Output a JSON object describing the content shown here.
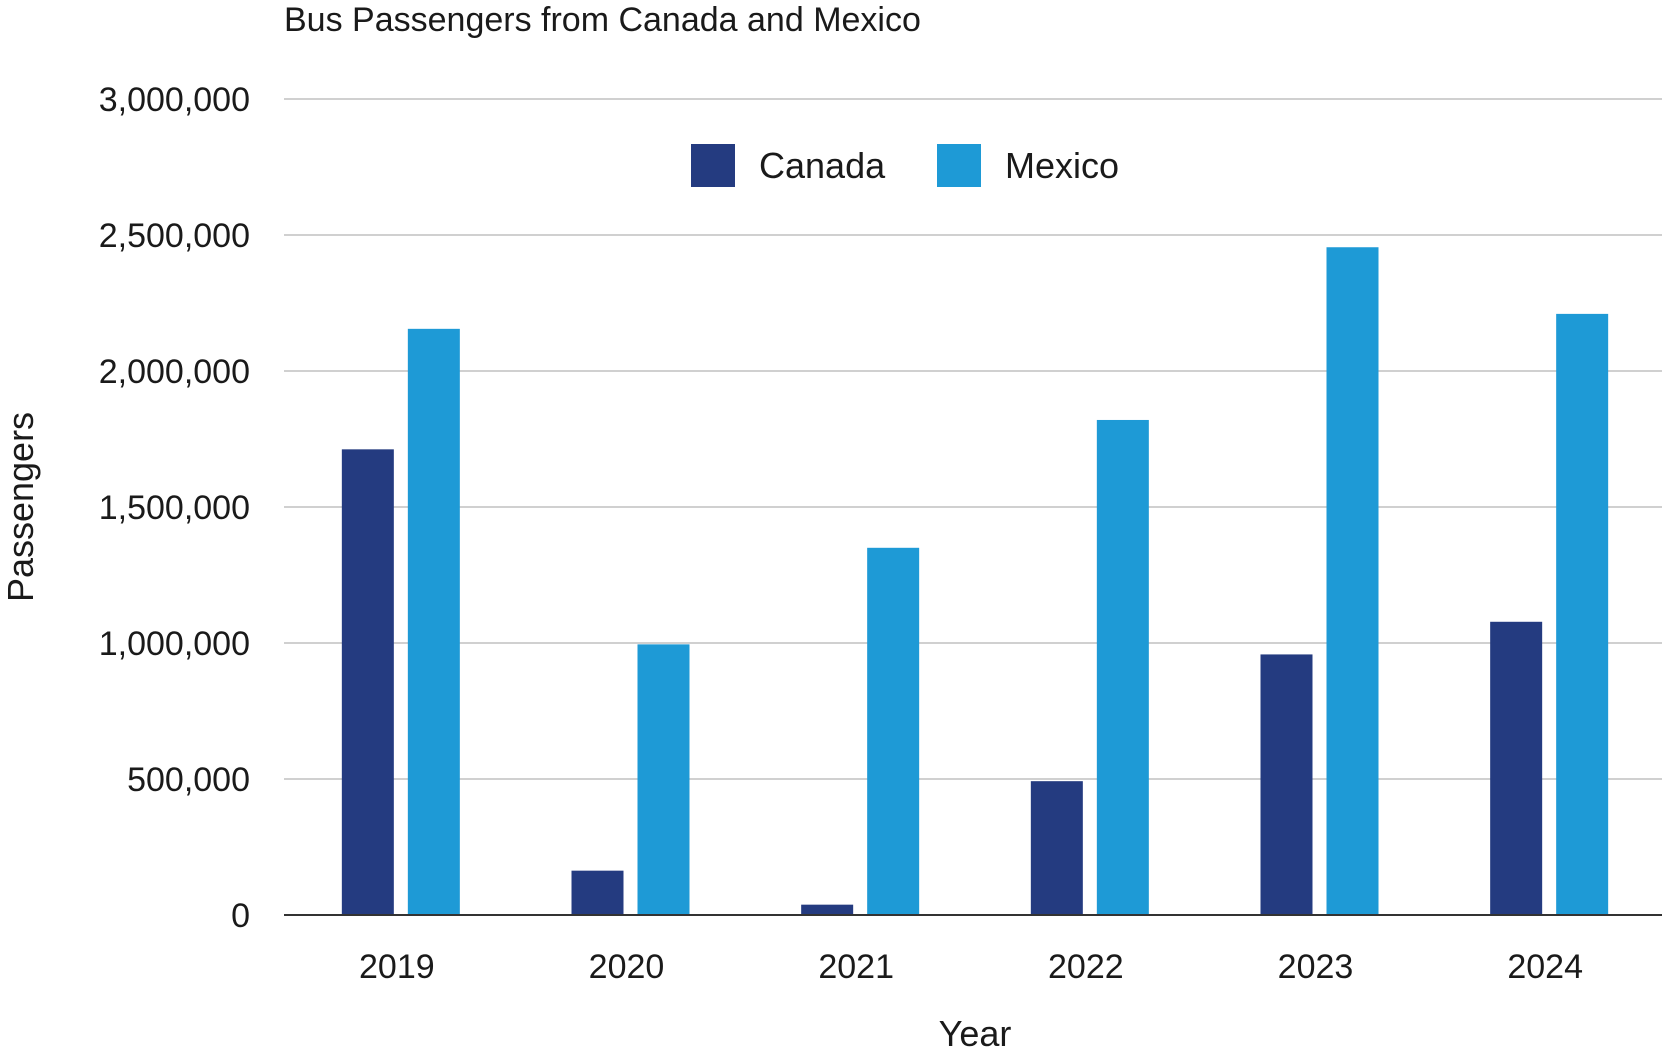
{
  "chart_data": {
    "type": "bar",
    "title": "Bus Passengers from Canada and Mexico",
    "xlabel": "Year",
    "ylabel": "Passengers",
    "categories": [
      "2019",
      "2020",
      "2021",
      "2022",
      "2023",
      "2024"
    ],
    "series": [
      {
        "name": "Canada",
        "color": "#243b80",
        "values": [
          1712000,
          163000,
          38000,
          492000,
          958000,
          1078000
        ]
      },
      {
        "name": "Mexico",
        "color": "#1e9ad6",
        "values": [
          2155000,
          995000,
          1350000,
          1820000,
          2455000,
          2210000
        ]
      }
    ],
    "ylim": [
      0,
      3000000
    ],
    "yticks": [
      0,
      500000,
      1000000,
      1500000,
      2000000,
      2500000,
      3000000
    ],
    "ytick_labels": [
      "0",
      "500,000",
      "1,000,000",
      "1,500,000",
      "2,000,000",
      "2,500,000",
      "3,000,000"
    ],
    "grid": true,
    "legend_position": "top-center"
  }
}
